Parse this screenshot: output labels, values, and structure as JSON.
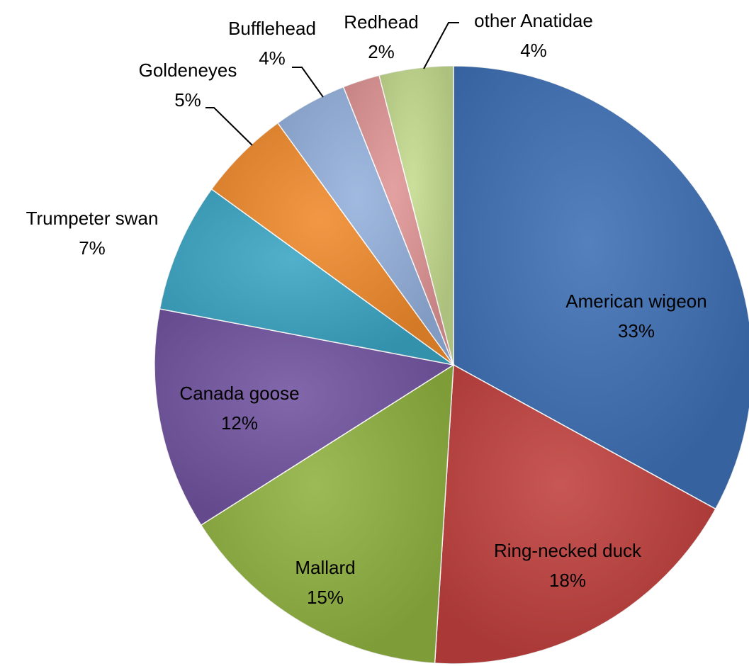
{
  "chart_data": {
    "type": "pie",
    "categories": [
      "American wigeon",
      "Ring-necked duck",
      "Mallard",
      "Canada goose",
      "Trumpeter swan",
      "Goldeneyes",
      "Bufflehead",
      "Redhead",
      "other Anatidae"
    ],
    "values": [
      33,
      18,
      15,
      12,
      7,
      5,
      4,
      2,
      4
    ],
    "value_labels": [
      "33%",
      "18%",
      "15%",
      "12%",
      "7%",
      "5%",
      "4%",
      "2%",
      "4%"
    ],
    "colors": [
      "#3d6fb5",
      "#c0403d",
      "#8fb13f",
      "#7153a0",
      "#3aa5c4",
      "#f08a2c",
      "#94b0dc",
      "#e09494",
      "#c4db8e"
    ]
  }
}
